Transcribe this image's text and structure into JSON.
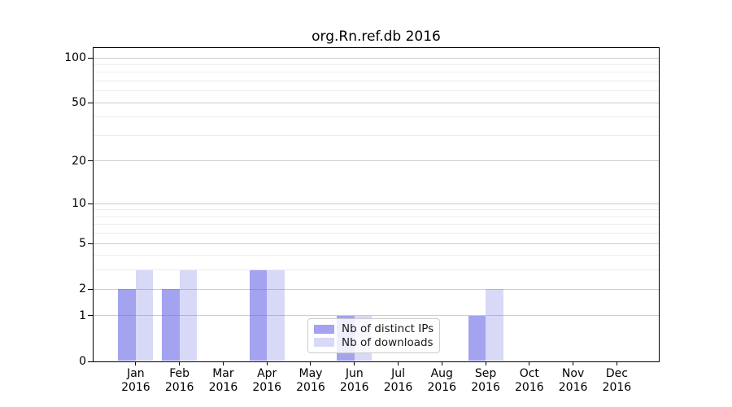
{
  "title": "org.Rn.ref.db 2016",
  "chart_data": {
    "type": "bar",
    "title": "org.Rn.ref.db 2016",
    "categories": [
      "Jan",
      "Feb",
      "Mar",
      "Apr",
      "May",
      "Jun",
      "Jul",
      "Aug",
      "Sep",
      "Oct",
      "Nov",
      "Dec"
    ],
    "x_tick_year": "2016",
    "series": [
      {
        "name": "Nb of distinct IPs",
        "color": "#a3a3ef",
        "values": [
          2,
          2,
          0,
          3,
          0,
          1,
          0,
          0,
          1,
          0,
          0,
          0
        ]
      },
      {
        "name": "Nb of downloads",
        "color": "#d8d8f7",
        "values": [
          3,
          3,
          0,
          3,
          0,
          1,
          0,
          0,
          2,
          0,
          0,
          0
        ]
      }
    ],
    "xlabel": "",
    "ylabel": "",
    "yscale": "log1p",
    "ylim": [
      0,
      118
    ],
    "yticks": [
      {
        "value": 100,
        "label": "100"
      },
      {
        "value": 50,
        "label": "50"
      },
      {
        "value": 20,
        "label": "20"
      },
      {
        "value": 10,
        "label": "10"
      },
      {
        "value": 5,
        "label": "5"
      },
      {
        "value": 2,
        "label": "2"
      },
      {
        "value": 1,
        "label": "1"
      },
      {
        "value": 0,
        "label": "0"
      }
    ],
    "minor_gridline_values": [
      3,
      4,
      6,
      7,
      8,
      9,
      30,
      40,
      60,
      70,
      80,
      90
    ],
    "grid": true,
    "legend_position": "lower center"
  }
}
